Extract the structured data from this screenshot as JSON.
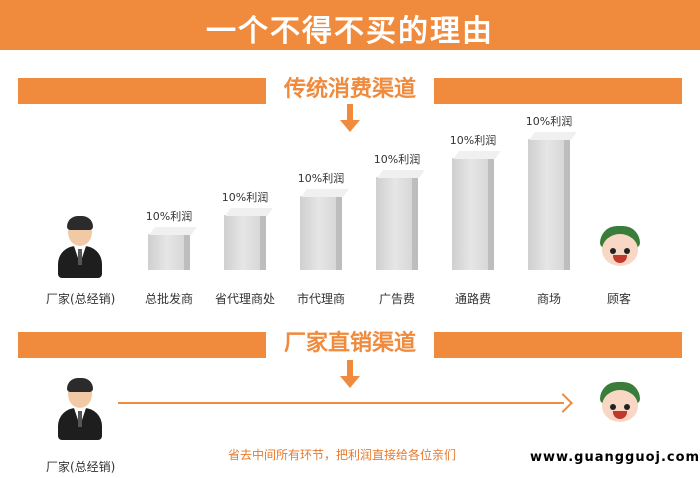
{
  "header": {
    "title": "一个不得不买的理由"
  },
  "traditional": {
    "banner_label": "传统消费渠道",
    "manufacturer_label": "厂家(总经销)",
    "customer_label": "顾客",
    "stages": [
      {
        "name": "总批发商",
        "profit": "10%利润",
        "level": 1
      },
      {
        "name": "省代理商处",
        "profit": "10%利润",
        "level": 2
      },
      {
        "name": "市代理商",
        "profit": "10%利润",
        "level": 3
      },
      {
        "name": "广告费",
        "profit": "10%利润",
        "level": 4
      },
      {
        "name": "通路费",
        "profit": "10%利润",
        "level": 5
      },
      {
        "name": "商场",
        "profit": "10%利润",
        "level": 6
      }
    ]
  },
  "direct": {
    "banner_label": "厂家直销渠道",
    "manufacturer_label": "厂家(总经销)",
    "note": "省去中间所有环节，把利润直接给各位亲们"
  },
  "watermark": "www.guangguoj.com",
  "colors": {
    "accent": "#f08a3c"
  },
  "icons": {
    "manufacturer": "businessman-icon",
    "customer": "customer-face-icon",
    "arrow": "down-arrow-icon"
  }
}
